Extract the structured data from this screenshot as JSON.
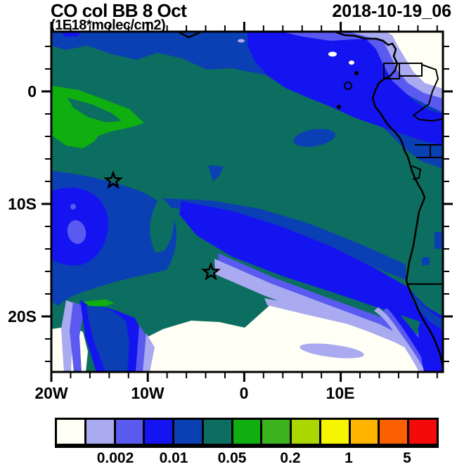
{
  "header": {
    "title": "CO col BB 8 Oct",
    "subtitle": "(1E18*molec/cm2)",
    "timestamp": "2018-10-19_06"
  },
  "palette": {
    "low_white": "#fffff6",
    "lavender": "#aaaaf0",
    "periwinkle": "#5a5af0",
    "bright_blue": "#1414f0",
    "dark_blue": "#0b3fb4",
    "teal": "#0c6e60",
    "green": "#0faf0f",
    "outline": "#000000",
    "page_background": "#ffffff"
  },
  "chart_data": {
    "type": "heatmap",
    "variant": "filled_contour_map",
    "title": "CO col BB 8 Oct",
    "units": "1E18*molec/cm2",
    "timestamp": "2018-10-19_06",
    "geo": {
      "region": "South Atlantic and western-central Africa",
      "lon_range_deg": [
        -20,
        21
      ],
      "lat_range_deg": [
        5.3,
        -25
      ]
    },
    "x_axis": {
      "tick_labels": [
        "20W",
        "10W",
        "0",
        "10E"
      ],
      "major_tick_step_deg": 10,
      "minor_tick_step_deg": 2
    },
    "y_axis": {
      "tick_labels": [
        "0",
        "10S",
        "20S"
      ],
      "major_tick_step_deg": 10,
      "minor_tick_step_deg": 2
    },
    "colorbar": {
      "labels": [
        "0.002",
        "0.01",
        "0.05",
        "0.2",
        "1",
        "5"
      ],
      "levels": [
        0.001,
        0.002,
        0.005,
        0.01,
        0.02,
        0.05,
        0.1,
        0.2,
        0.5,
        1,
        2,
        5
      ],
      "colors": [
        "#fffff6",
        "#aaaaf0",
        "#5a5af0",
        "#1414f0",
        "#0b3fb4",
        "#0c6e60",
        "#0faf0f",
        "#3cb41e",
        "#aad700",
        "#f5f500",
        "#ffb400",
        "#fa5f00",
        "#f50a0a"
      ]
    },
    "markers": [
      {
        "shape": "star",
        "approx_lon_deg": -14,
        "approx_lat_deg": -8
      },
      {
        "shape": "star",
        "approx_lon_deg": -4,
        "approx_lat_deg": -16
      }
    ],
    "field_summary": [
      {
        "color": "#0c6e60",
        "value_range": "0.02 to 0.05",
        "where": "dominant background over ocean and most land"
      },
      {
        "color": "#0faf0f",
        "value_range": "0.05 to 0.1",
        "where": "patch near 0-4S, 20W-11W; tiny sliver near 21S 14W"
      },
      {
        "color": "#0b3fb4",
        "value_range": "0.01 to 0.02",
        "where": "band along northern edge; broad southwest region; diagonal band to southeast coast"
      },
      {
        "color": "#1414f0",
        "value_range": "0.005 to 0.01",
        "where": "cores of the blue regions, northeast corner, along Angola-Namibia coast"
      },
      {
        "color": "#5a5af0",
        "value_range": "0.002 to 0.005",
        "where": "fringes of low areas; small blob near 12S 18W"
      },
      {
        "color": "#aaaaf0",
        "value_range": "0.001 to 0.002",
        "where": "fringes and streaks in the far south and northeast corner"
      },
      {
        "color": "#fffff6",
        "value_range": "below 0.001",
        "where": "northeast corner over land and large area south of about 19S"
      }
    ]
  }
}
